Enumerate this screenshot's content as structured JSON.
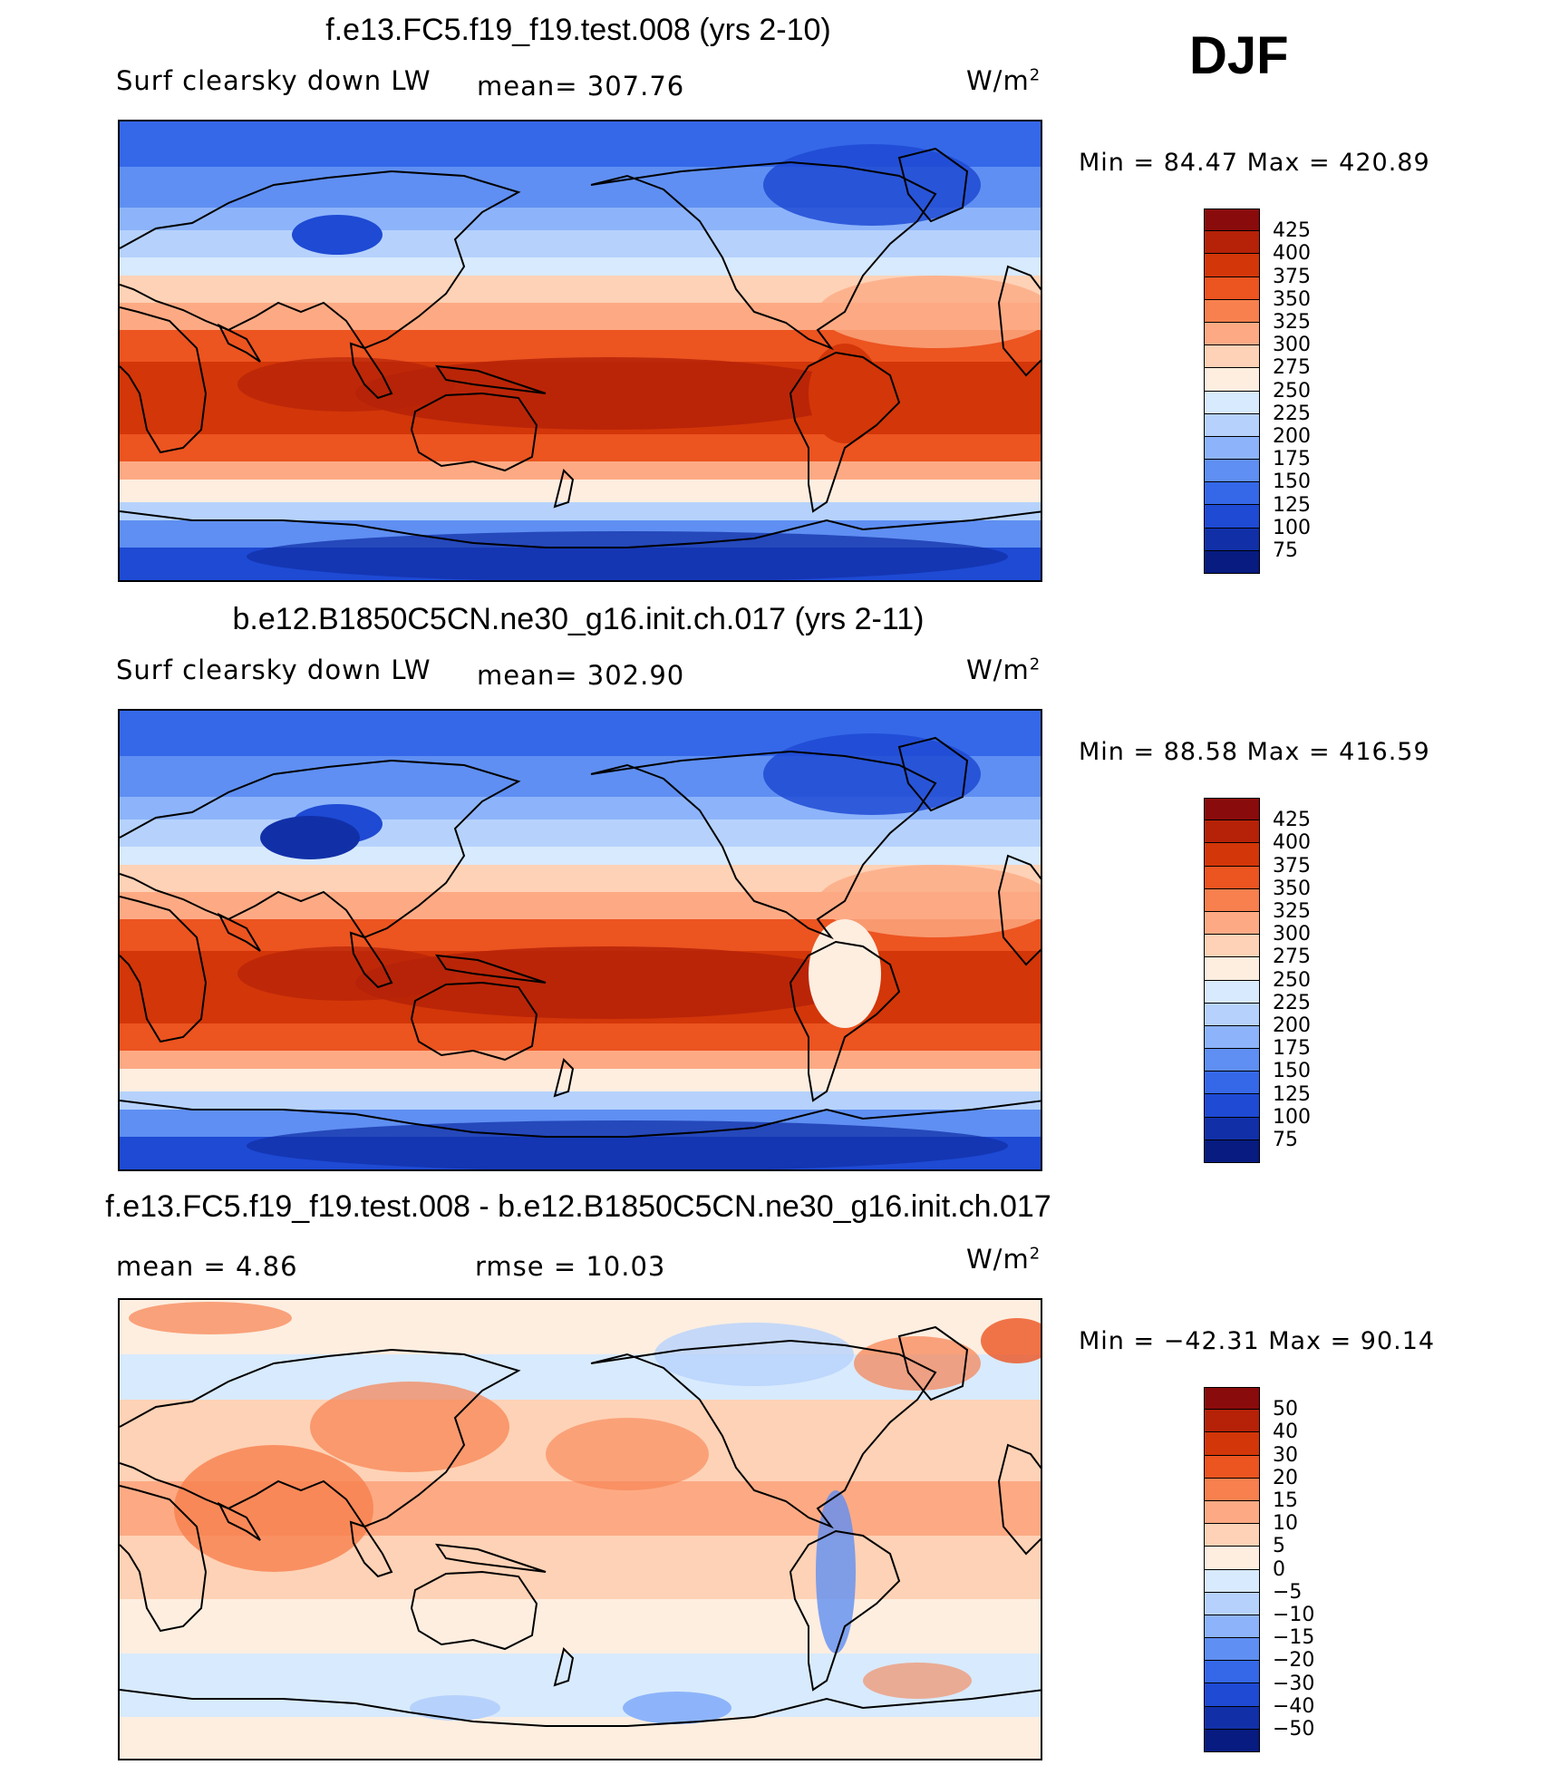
{
  "season": "DJF",
  "panels": [
    {
      "title": "f.e13.FC5.f19_f19.test.008 (yrs 2-10)",
      "left_label": "Surf clearsky down LW",
      "stat_label": "mean=  307.76",
      "units_base": "W/m",
      "units_exp": "2",
      "minmax": "Min =   84.47  Max  =  420.89"
    },
    {
      "title": "b.e12.B1850C5CN.ne30_g16.init.ch.017 (yrs 2-11)",
      "left_label": "Surf clearsky down LW",
      "stat_label": "mean=  302.90",
      "units_base": "W/m",
      "units_exp": "2",
      "minmax": "Min =   88.58  Max  =  416.59"
    },
    {
      "title": "f.e13.FC5.f19_f19.test.008 - b.e12.B1850C5CN.ne30_g16.init.ch.017",
      "left_label": "mean =    4.86",
      "stat_label": "rmse =    10.03",
      "units_base": "W/m",
      "units_exp": "2",
      "minmax": "Min = −42.31  Max =   90.14"
    }
  ],
  "chart_data": [
    {
      "type": "heatmap",
      "title": "f.e13.FC5.f19_f19.test.008 (yrs 2-10)",
      "variable": "Surf clearsky down LW",
      "units": "W/m2",
      "mean": 307.76,
      "min": 84.47,
      "max": 420.89,
      "colorbar_levels": [
        "425",
        "400",
        "375",
        "350",
        "325",
        "300",
        "275",
        "250",
        "225",
        "200",
        "175",
        "150",
        "125",
        "100",
        "75"
      ],
      "colors": [
        "#8a0b0b",
        "#b52208",
        "#d33608",
        "#ec5420",
        "#f7804e",
        "#fdaa84",
        "#fed2b6",
        "#fdeee0",
        "#d8eafd",
        "#b6d2fc",
        "#8db4fa",
        "#5f8ff2",
        "#3568e8",
        "#1e4ad4",
        "#1130a8",
        "#071b80"
      ]
    },
    {
      "type": "heatmap",
      "title": "b.e12.B1850C5CN.ne30_g16.init.ch.017 (yrs 2-11)",
      "variable": "Surf clearsky down LW",
      "units": "W/m2",
      "mean": 302.9,
      "min": 88.58,
      "max": 416.59,
      "colorbar_levels": [
        "425",
        "400",
        "375",
        "350",
        "325",
        "300",
        "275",
        "250",
        "225",
        "200",
        "175",
        "150",
        "125",
        "100",
        "75"
      ],
      "colors": [
        "#8a0b0b",
        "#b52208",
        "#d33608",
        "#ec5420",
        "#f7804e",
        "#fdaa84",
        "#fed2b6",
        "#fdeee0",
        "#d8eafd",
        "#b6d2fc",
        "#8db4fa",
        "#5f8ff2",
        "#3568e8",
        "#1e4ad4",
        "#1130a8",
        "#071b80"
      ]
    },
    {
      "type": "heatmap",
      "title": "f.e13.FC5.f19_f19.test.008 - b.e12.B1850C5CN.ne30_g16.init.ch.017",
      "variable": "difference",
      "units": "W/m2",
      "mean": 4.86,
      "rmse": 10.03,
      "min": -42.31,
      "max": 90.14,
      "colorbar_levels": [
        "50",
        "40",
        "30",
        "20",
        "15",
        "10",
        "5",
        "0",
        "−5",
        "−10",
        "−15",
        "−20",
        "−30",
        "−40",
        "−50"
      ],
      "colors": [
        "#8a0b0b",
        "#b52208",
        "#d33608",
        "#ec5420",
        "#f7804e",
        "#fdaa84",
        "#fed2b6",
        "#fdeee0",
        "#d8eafd",
        "#b6d2fc",
        "#8db4fa",
        "#5f8ff2",
        "#3568e8",
        "#1e4ad4",
        "#1130a8",
        "#071b80"
      ]
    }
  ]
}
